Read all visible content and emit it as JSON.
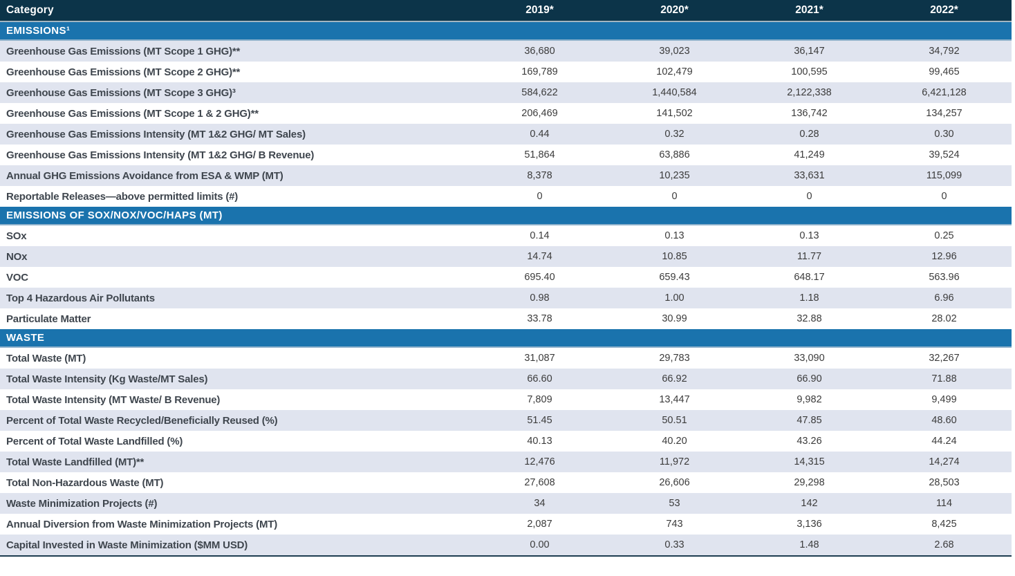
{
  "colors": {
    "header_bg": "#0c3449",
    "header_separator": "#a3b6c1",
    "band_bg": "#1a73ad",
    "band_separator": "#8fb2cc",
    "shaded_row": "#e0e4ef",
    "label_color": "#3f464e",
    "value_color": "#3b3b3b",
    "bottom_border": "#1d3c50"
  },
  "table": {
    "header": {
      "category_label": "Category",
      "years": [
        "2019*",
        "2020*",
        "2021*",
        "2022*"
      ]
    },
    "sections": [
      {
        "title": "EMISSIONS¹",
        "first_row_shaded": true,
        "rows": [
          {
            "label": "Greenhouse Gas Emissions (MT Scope 1 GHG)**",
            "values": [
              "36,680",
              "39,023",
              "36,147",
              "34,792"
            ]
          },
          {
            "label": "Greenhouse Gas Emissions (MT Scope 2 GHG)**",
            "values": [
              "169,789",
              "102,479",
              "100,595",
              "99,465"
            ]
          },
          {
            "label": "Greenhouse Gas Emissions (MT Scope 3 GHG)³",
            "values": [
              "584,622",
              "1,440,584",
              "2,122,338",
              "6,421,128"
            ]
          },
          {
            "label": "Greenhouse Gas Emissions (MT Scope 1 & 2 GHG)**",
            "values": [
              "206,469",
              "141,502",
              "136,742",
              "134,257"
            ]
          },
          {
            "label": "Greenhouse Gas Emissions Intensity (MT 1&2 GHG/ MT Sales)",
            "values": [
              "0.44",
              "0.32",
              "0.28",
              "0.30"
            ]
          },
          {
            "label": "Greenhouse Gas Emissions Intensity (MT 1&2 GHG/ B Revenue)",
            "values": [
              "51,864",
              "63,886",
              "41,249",
              "39,524"
            ]
          },
          {
            "label": "Annual GHG Emissions Avoidance from ESA & WMP (MT)",
            "values": [
              "8,378",
              "10,235",
              "33,631",
              "115,099"
            ]
          },
          {
            "label": "Reportable Releases—above permitted limits (#)",
            "values": [
              "0",
              "0",
              "0",
              "0"
            ]
          }
        ]
      },
      {
        "title": "EMISSIONS OF SOX/NOX/VOC/HAPS (MT)",
        "first_row_shaded": false,
        "rows": [
          {
            "label": "SOx",
            "values": [
              "0.14",
              "0.13",
              "0.13",
              "0.25"
            ]
          },
          {
            "label": "NOx",
            "values": [
              "14.74",
              "10.85",
              "11.77",
              "12.96"
            ]
          },
          {
            "label": "VOC",
            "values": [
              "695.40",
              "659.43",
              "648.17",
              "563.96"
            ]
          },
          {
            "label": "Top 4 Hazardous Air Pollutants",
            "values": [
              "0.98",
              "1.00",
              "1.18",
              "6.96"
            ]
          },
          {
            "label": "Particulate Matter",
            "values": [
              "33.78",
              "30.99",
              "32.88",
              "28.02"
            ]
          }
        ]
      },
      {
        "title": "WASTE",
        "first_row_shaded": false,
        "rows": [
          {
            "label": "Total Waste (MT)",
            "values": [
              "31,087",
              "29,783",
              "33,090",
              "32,267"
            ]
          },
          {
            "label": "Total Waste Intensity (Kg Waste/MT Sales)",
            "values": [
              "66.60",
              "66.92",
              "66.90",
              "71.88"
            ]
          },
          {
            "label": "Total Waste Intensity (MT Waste/ B Revenue)",
            "values": [
              "7,809",
              "13,447",
              "9,982",
              "9,499"
            ]
          },
          {
            "label": "Percent of Total Waste Recycled/Beneficially Reused (%)",
            "values": [
              "51.45",
              "50.51",
              "47.85",
              "48.60"
            ]
          },
          {
            "label": "Percent of Total Waste Landfilled (%)",
            "values": [
              "40.13",
              "40.20",
              "43.26",
              "44.24"
            ]
          },
          {
            "label": "Total Waste Landfilled (MT)**",
            "values": [
              "12,476",
              "11,972",
              "14,315",
              "14,274"
            ]
          },
          {
            "label": "Total Non-Hazardous Waste (MT)",
            "values": [
              "27,608",
              "26,606",
              "29,298",
              "28,503"
            ]
          },
          {
            "label": "Waste Minimization Projects (#)",
            "values": [
              "34",
              "53",
              "142",
              "114"
            ]
          },
          {
            "label": "Annual Diversion from Waste Minimization Projects (MT)",
            "values": [
              "2,087",
              "743",
              "3,136",
              "8,425"
            ]
          },
          {
            "label": "Capital Invested in Waste Minimization ($MM USD)",
            "values": [
              "0.00",
              "0.33",
              "1.48",
              "2.68"
            ]
          }
        ]
      }
    ]
  }
}
